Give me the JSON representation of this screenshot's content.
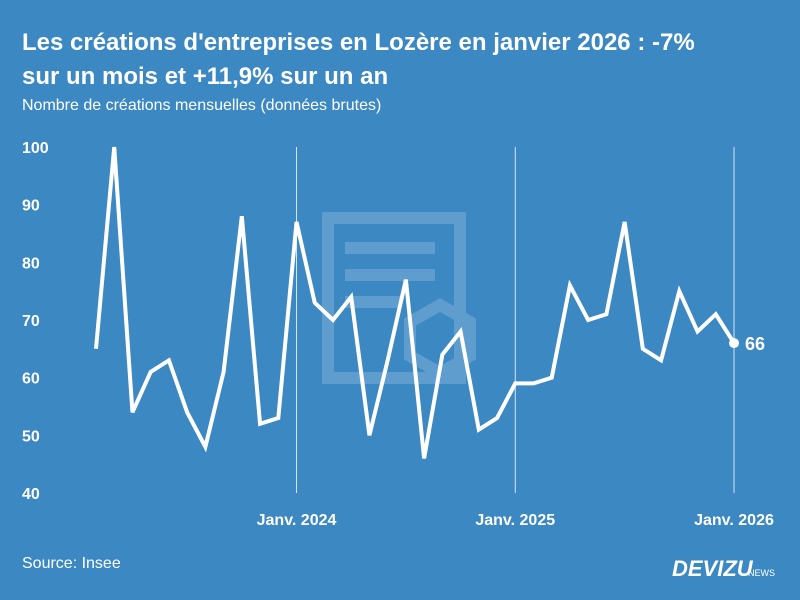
{
  "chart_data": {
    "type": "line",
    "title": "Les créations d'entreprises en Lozère en janvier 2026 : -7% sur un mois et +11,9% sur un an",
    "title_lines": [
      "Les créations d'entreprises en Lozère en janvier 2026 : -7%",
      "sur un mois et +11,9% sur un an"
    ],
    "subtitle": "Nombre de créations mensuelles (données brutes)",
    "source": "Source: Insee",
    "logo": "DEVIZU",
    "logo_suffix": "NEWS",
    "categories": [
      null,
      null,
      null,
      null,
      null,
      null,
      null,
      null,
      null,
      null,
      null,
      "Janv. 2024",
      null,
      null,
      null,
      null,
      null,
      null,
      null,
      null,
      null,
      null,
      null,
      "Janv. 2025",
      null,
      null,
      null,
      null,
      null,
      null,
      null,
      null,
      null,
      null,
      null,
      "Janv. 2026"
    ],
    "series": [
      {
        "name": "Créations",
        "color": "#ffffff",
        "values": [
          65,
          100,
          54,
          61,
          63,
          54,
          48,
          61,
          88,
          52,
          53,
          87,
          73,
          70,
          74,
          50,
          63,
          77,
          46,
          64,
          68,
          51,
          53,
          59,
          59,
          60,
          76,
          70,
          71,
          87,
          65,
          63,
          75,
          68,
          71,
          66
        ]
      }
    ],
    "ylim": [
      40,
      100
    ],
    "yticks": [
      40,
      50,
      60,
      70,
      80,
      90,
      100
    ],
    "grid": "x"
  }
}
